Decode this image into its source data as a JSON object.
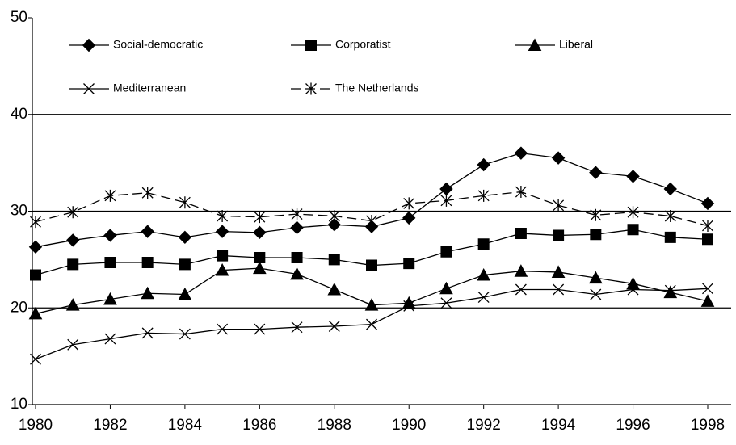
{
  "chart_data": {
    "type": "line",
    "x": [
      1980,
      1981,
      1982,
      1983,
      1984,
      1985,
      1986,
      1987,
      1988,
      1989,
      1990,
      1991,
      1992,
      1993,
      1994,
      1995,
      1996,
      1997,
      1998
    ],
    "xlim": [
      1980,
      1998
    ],
    "xticks": [
      1980,
      1982,
      1984,
      1986,
      1988,
      1990,
      1992,
      1994,
      1996,
      1998
    ],
    "ylim": [
      10,
      50
    ],
    "yticks": [
      10,
      20,
      30,
      40,
      50
    ],
    "grid": true,
    "legend": "top",
    "series": [
      {
        "name": "Social-democratic",
        "color": "#000000",
        "marker": "diamond",
        "dash": false,
        "values": [
          26.3,
          27.0,
          27.5,
          27.9,
          27.3,
          27.9,
          27.8,
          28.3,
          28.6,
          28.4,
          29.3,
          32.3,
          34.8,
          36.0,
          35.5,
          34.0,
          33.6,
          32.3,
          30.8
        ]
      },
      {
        "name": "Corporatist",
        "color": "#000000",
        "marker": "square",
        "dash": false,
        "values": [
          23.4,
          24.5,
          24.7,
          24.7,
          24.5,
          25.4,
          25.2,
          25.2,
          25.0,
          24.4,
          24.6,
          25.8,
          26.6,
          27.7,
          27.5,
          27.6,
          28.1,
          27.3,
          27.1
        ]
      },
      {
        "name": "Liberal",
        "color": "#000000",
        "marker": "triangle",
        "dash": false,
        "values": [
          19.4,
          20.3,
          20.9,
          21.5,
          21.4,
          23.9,
          24.1,
          23.5,
          21.9,
          20.3,
          20.5,
          22.0,
          23.4,
          23.8,
          23.7,
          23.1,
          22.5,
          21.6,
          20.7
        ]
      },
      {
        "name": "Mediterranean",
        "color": "#000000",
        "marker": "x",
        "dash": false,
        "values": [
          14.7,
          16.2,
          16.8,
          17.4,
          17.3,
          17.8,
          17.8,
          18.0,
          18.1,
          18.3,
          20.2,
          20.5,
          21.1,
          21.9,
          21.9,
          21.4,
          21.9,
          21.8,
          22.0
        ]
      },
      {
        "name": "The Netherlands",
        "color": "#000000",
        "marker": "asterisk",
        "dash": true,
        "values": [
          28.9,
          29.9,
          31.6,
          31.9,
          30.9,
          29.5,
          29.4,
          29.7,
          29.5,
          29.0,
          30.8,
          31.1,
          31.6,
          32.0,
          30.6,
          29.6,
          29.9,
          29.5,
          28.5
        ]
      }
    ]
  }
}
